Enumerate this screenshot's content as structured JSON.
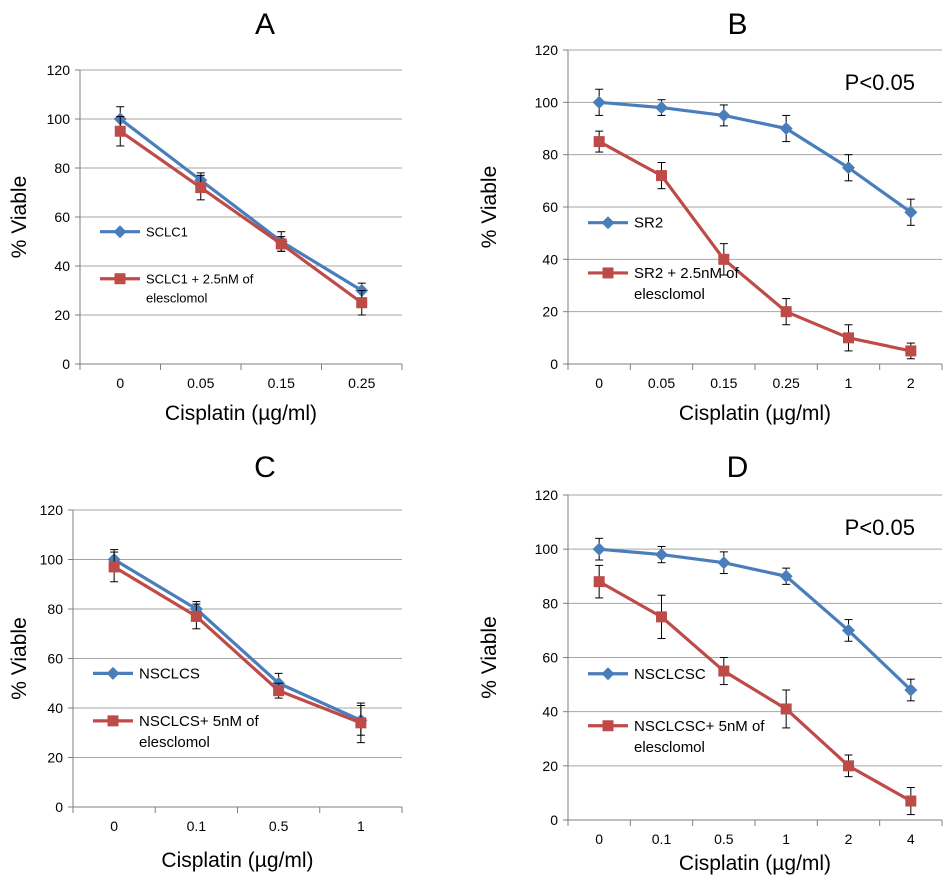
{
  "colors": {
    "series1": "#4a7ebb",
    "series2": "#be4b48",
    "grid": "#a6a6a6",
    "axis": "#7f7f7f",
    "errorbar": "#000000"
  },
  "chart_data": [
    {
      "panel": "A",
      "type": "line",
      "title": "A",
      "annotation": "",
      "xlabel": "Cisplatin (µg/ml)",
      "ylabel": "% Viable",
      "ylim": [
        0,
        120
      ],
      "yticks": [
        0,
        20,
        40,
        60,
        80,
        100,
        120
      ],
      "grid": true,
      "legend_placement": "center-left",
      "categories": [
        "0",
        "0.05",
        "0.15",
        "0.25"
      ],
      "series": [
        {
          "name": "SCLC1",
          "marker": "diamond",
          "values": [
            100,
            75,
            50,
            30
          ],
          "errors": [
            5,
            3,
            4,
            3
          ]
        },
        {
          "name": "SCLC1 + 2.5nM of elesclomol",
          "marker": "square",
          "values": [
            95,
            72,
            49,
            25
          ],
          "errors": [
            6,
            5,
            3,
            5
          ]
        }
      ]
    },
    {
      "panel": "B",
      "type": "line",
      "title": "B",
      "annotation": "P<0.05",
      "xlabel": "Cisplatin (µg/ml)",
      "ylabel": "% Viable",
      "ylim": [
        0,
        120
      ],
      "yticks": [
        0,
        20,
        40,
        60,
        80,
        100,
        120
      ],
      "grid": true,
      "legend_placement": "center-left",
      "categories": [
        "0",
        "0.05",
        "0.15",
        "0.25",
        "1",
        "2"
      ],
      "series": [
        {
          "name": "SR2",
          "marker": "diamond",
          "values": [
            100,
            98,
            95,
            90,
            75,
            58
          ],
          "errors": [
            5,
            3,
            4,
            5,
            5,
            5
          ]
        },
        {
          "name": "SR2 + 2.5nM of elesclomol",
          "marker": "square",
          "values": [
            85,
            72,
            40,
            20,
            10,
            5
          ],
          "errors": [
            4,
            5,
            6,
            5,
            5,
            3
          ]
        }
      ]
    },
    {
      "panel": "C",
      "type": "line",
      "title": "C",
      "annotation": "",
      "xlabel": "Cisplatin (µg/ml)",
      "ylabel": "% Viable",
      "ylim": [
        0,
        120
      ],
      "yticks": [
        0,
        20,
        40,
        60,
        80,
        100,
        120
      ],
      "grid": true,
      "legend_placement": "center-left",
      "categories": [
        "0",
        "0.1",
        "0.5",
        "1"
      ],
      "series": [
        {
          "name": "NSCLCS",
          "marker": "diamond",
          "values": [
            100,
            80,
            50,
            35
          ],
          "errors": [
            4,
            3,
            4,
            6
          ]
        },
        {
          "name": "NSCLCS+ 5nM of elesclomol",
          "marker": "square",
          "values": [
            97,
            77,
            47,
            34
          ],
          "errors": [
            6,
            5,
            3,
            8
          ]
        }
      ]
    },
    {
      "panel": "D",
      "type": "line",
      "title": "D",
      "annotation": "P<0.05",
      "xlabel": "Cisplatin (µg/ml)",
      "ylabel": "% Viable",
      "ylim": [
        0,
        120
      ],
      "yticks": [
        0,
        20,
        40,
        60,
        80,
        100,
        120
      ],
      "grid": true,
      "legend_placement": "center-left",
      "categories": [
        "0",
        "0.1",
        "0.5",
        "1",
        "2",
        "4"
      ],
      "series": [
        {
          "name": "NSCLCSC",
          "marker": "diamond",
          "values": [
            100,
            98,
            95,
            90,
            70,
            48
          ],
          "errors": [
            4,
            3,
            4,
            3,
            4,
            4
          ]
        },
        {
          "name": "NSCLCSC+ 5nM of elesclomol",
          "marker": "square",
          "values": [
            88,
            75,
            55,
            41,
            20,
            7
          ],
          "errors": [
            6,
            8,
            5,
            7,
            4,
            5
          ]
        }
      ]
    }
  ]
}
